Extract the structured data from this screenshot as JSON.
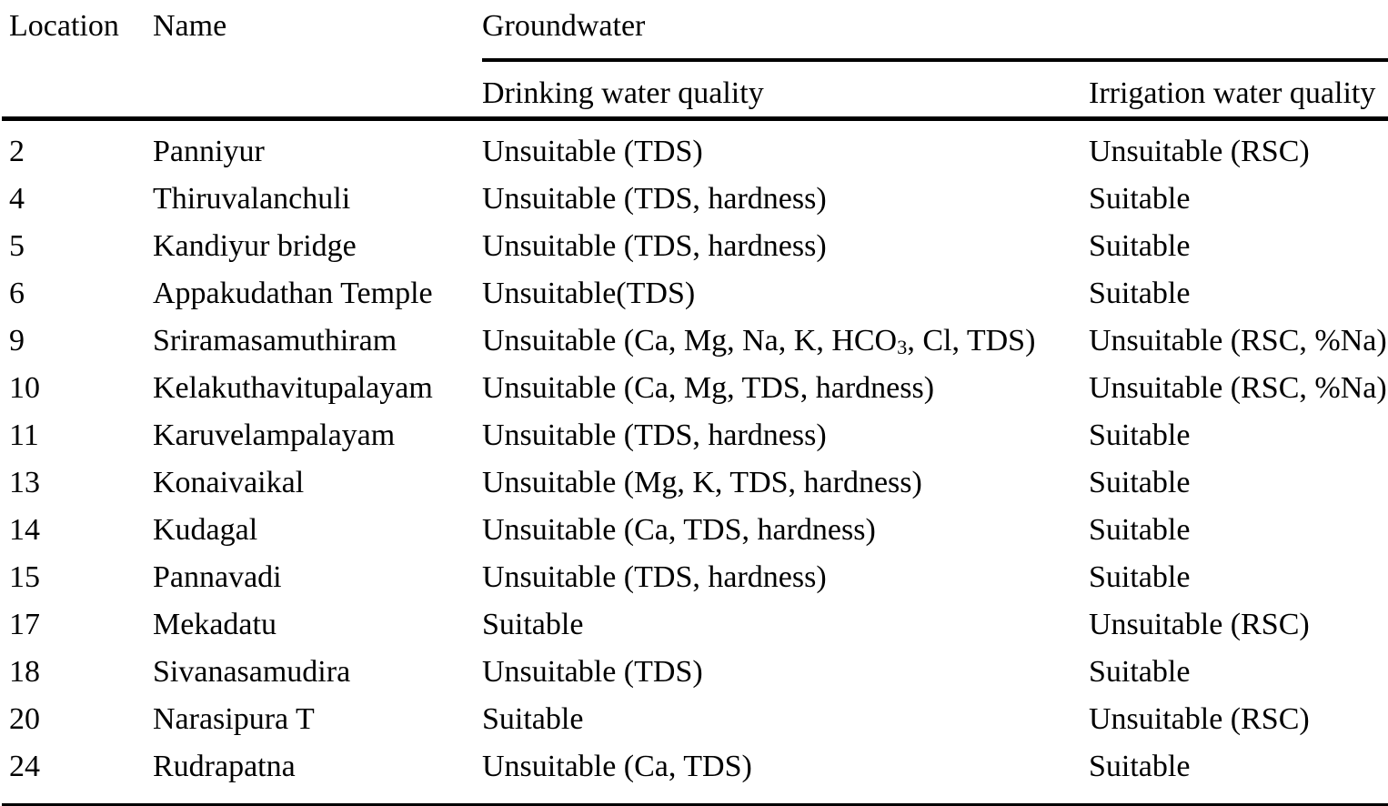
{
  "meta": {
    "text_color": "#000000",
    "background_color": "#ffffff"
  },
  "table": {
    "header": {
      "location": "Location",
      "name": "Name",
      "group": "Groundwater",
      "drinking": "Drinking water quality",
      "irrigation": "Irrigation water quality"
    },
    "rows": [
      {
        "location": "2",
        "name": "Panniyur",
        "drinking": "Unsuitable (TDS)",
        "irrigation": "Unsuitable (RSC)"
      },
      {
        "location": "4",
        "name": "Thiruvalanchuli",
        "drinking": "Unsuitable (TDS, hardness)",
        "irrigation": "Suitable"
      },
      {
        "location": "5",
        "name": "Kandiyur bridge",
        "drinking": "Unsuitable (TDS, hardness)",
        "irrigation": "Suitable"
      },
      {
        "location": "6",
        "name": "Appakudathan Temple",
        "drinking": "Unsuitable(TDS)",
        "irrigation": "Suitable"
      },
      {
        "location": "9",
        "name": "Sriramasamuthiram",
        "drinking": "Unsuitable (Ca, Mg, Na, K, HCO<sub>3</sub>, Cl, TDS)",
        "irrigation": "Unsuitable (RSC, %Na)"
      },
      {
        "location": "10",
        "name": "Kelakuthavitupalayam",
        "drinking": "Unsuitable (Ca, Mg, TDS, hardness)",
        "irrigation": "Unsuitable (RSC, %Na)"
      },
      {
        "location": "11",
        "name": "Karuvelampalayam",
        "drinking": "Unsuitable (TDS, hardness)",
        "irrigation": "Suitable"
      },
      {
        "location": "13",
        "name": "Konaivaikal",
        "drinking": "Unsuitable (Mg, K, TDS, hardness)",
        "irrigation": "Suitable"
      },
      {
        "location": "14",
        "name": "Kudagal",
        "drinking": "Unsuitable (Ca, TDS, hardness)",
        "irrigation": "Suitable"
      },
      {
        "location": "15",
        "name": "Pannavadi",
        "drinking": "Unsuitable (TDS, hardness)",
        "irrigation": "Suitable"
      },
      {
        "location": "17",
        "name": "Mekadatu",
        "drinking": "Suitable",
        "irrigation": "Unsuitable (RSC)"
      },
      {
        "location": "18",
        "name": "Sivanasamudira",
        "drinking": "Unsuitable (TDS)",
        "irrigation": "Suitable"
      },
      {
        "location": "20",
        "name": "Narasipura T",
        "drinking": "Suitable",
        "irrigation": "Unsuitable (RSC)"
      },
      {
        "location": "24",
        "name": "Rudrapatna",
        "drinking": "Unsuitable (Ca, TDS)",
        "irrigation": "Suitable"
      }
    ]
  }
}
